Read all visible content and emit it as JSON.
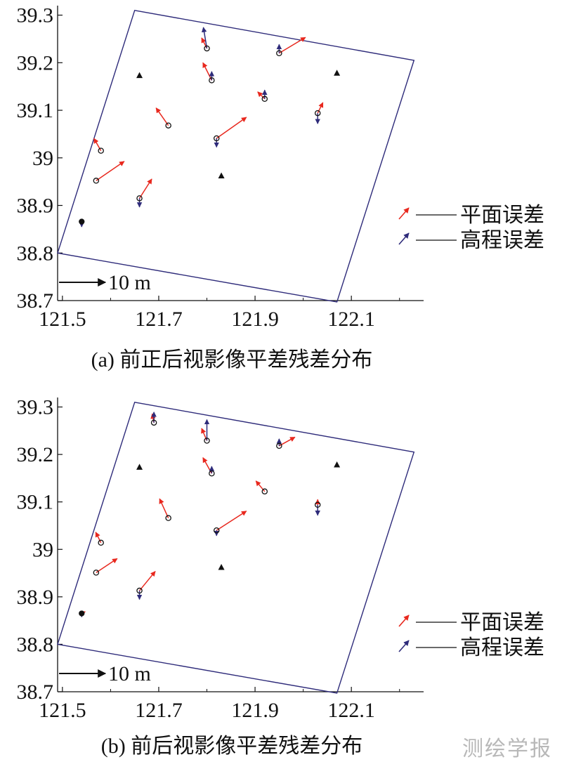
{
  "watermark": "测绘学报",
  "legend": {
    "planar": "平面误差",
    "height": "高程误差"
  },
  "colors": {
    "planar": "#e8281e",
    "height": "#2e2b7a",
    "frame": "#2e2b7a",
    "axis": "#111111"
  },
  "chart_data": [
    {
      "type": "scatter",
      "caption": "(a) 前正后视影像平差残差分布",
      "xlim": [
        121.49,
        122.25
      ],
      "ylim": [
        38.7,
        39.32
      ],
      "xticks": [
        "121.5",
        "121.7",
        "121.9",
        "122.1"
      ],
      "xtick_values": [
        121.5,
        121.7,
        121.9,
        122.1
      ],
      "yticks": [
        "39.3",
        "39.2",
        "39.1",
        "39",
        "38.9",
        "38.8",
        "38.7"
      ],
      "ytick_values": [
        39.3,
        39.2,
        39.1,
        39.0,
        38.9,
        38.8,
        38.7
      ],
      "scale_label": "10 m",
      "boundary": [
        [
          121.65,
          39.31
        ],
        [
          122.23,
          39.205
        ],
        [
          122.07,
          38.697
        ],
        [
          121.49,
          38.8
        ]
      ],
      "control_points": [
        [
          121.66,
          39.173
        ],
        [
          122.07,
          39.178
        ],
        [
          121.83,
          38.962
        ]
      ],
      "check_points": [
        [
          121.8,
          39.23
        ],
        [
          121.95,
          39.22
        ],
        [
          121.81,
          39.163
        ],
        [
          121.92,
          39.124
        ],
        [
          122.03,
          39.094
        ],
        [
          121.72,
          39.068
        ],
        [
          121.82,
          39.041
        ],
        [
          121.58,
          39.015
        ],
        [
          121.57,
          38.952
        ],
        [
          121.66,
          38.915
        ],
        [
          121.54,
          38.866
        ]
      ],
      "planar_error": [
        [
          -0.3,
          0.6
        ],
        [
          1.5,
          0.9
        ],
        [
          -0.5,
          1.0
        ],
        [
          -0.4,
          0.4
        ],
        [
          0.3,
          0.6
        ],
        [
          -0.7,
          1.0
        ],
        [
          1.7,
          1.2
        ],
        [
          -0.4,
          0.7
        ],
        [
          1.6,
          1.1
        ],
        [
          0.7,
          1.1
        ],
        [
          0,
          0
        ]
      ],
      "height_error": [
        [
          -0.2,
          1.2
        ],
        [
          0,
          0.5
        ],
        [
          0,
          0.5
        ],
        [
          0,
          0.5
        ],
        [
          0,
          -0.6
        ],
        [
          0,
          0
        ],
        [
          0,
          -0.5
        ],
        [
          0,
          0
        ],
        [
          0,
          0
        ],
        [
          0,
          -0.5
        ],
        [
          0,
          -0.3
        ]
      ]
    },
    {
      "type": "scatter",
      "caption": "(b) 前后视影像平差残差分布",
      "xlim": [
        121.49,
        122.25
      ],
      "ylim": [
        38.7,
        39.32
      ],
      "xticks": [
        "121.5",
        "121.7",
        "121.9",
        "122.1"
      ],
      "xtick_values": [
        121.5,
        121.7,
        121.9,
        122.1
      ],
      "yticks": [
        "39.3",
        "39.2",
        "39.1",
        "39",
        "38.9",
        "38.8",
        "38.7"
      ],
      "ytick_values": [
        39.3,
        39.2,
        39.1,
        39.0,
        38.9,
        38.8,
        38.7
      ],
      "scale_label": "10 m",
      "boundary": [
        [
          121.65,
          39.31
        ],
        [
          122.23,
          39.205
        ],
        [
          122.07,
          38.697
        ],
        [
          121.49,
          38.8
        ]
      ],
      "control_points": [
        [
          121.66,
          39.173
        ],
        [
          122.07,
          39.178
        ],
        [
          121.83,
          38.962
        ]
      ],
      "check_points": [
        [
          121.69,
          39.267
        ],
        [
          121.8,
          39.229
        ],
        [
          121.95,
          39.218
        ],
        [
          121.81,
          39.16
        ],
        [
          121.92,
          39.122
        ],
        [
          122.03,
          39.094
        ],
        [
          121.72,
          39.066
        ],
        [
          121.82,
          39.04
        ],
        [
          121.58,
          39.014
        ],
        [
          121.57,
          38.951
        ],
        [
          121.66,
          38.913
        ],
        [
          121.54,
          38.865
        ]
      ],
      "planar_error": [
        [
          -0.1,
          0.5
        ],
        [
          -0.3,
          0.7
        ],
        [
          0.9,
          0.5
        ],
        [
          -0.5,
          0.9
        ],
        [
          -0.5,
          0.6
        ],
        [
          0,
          0.3
        ],
        [
          -0.5,
          1.1
        ],
        [
          1.7,
          1.1
        ],
        [
          -0.3,
          0.6
        ],
        [
          1.2,
          0.8
        ],
        [
          0.9,
          1.1
        ],
        [
          0.2,
          0.1
        ]
      ],
      "height_error": [
        [
          0,
          0.6
        ],
        [
          0,
          1.2
        ],
        [
          0,
          0.4
        ],
        [
          0,
          0.4
        ],
        [
          0,
          0
        ],
        [
          0,
          -0.6
        ],
        [
          0,
          0
        ],
        [
          0,
          -0.3
        ],
        [
          0,
          0
        ],
        [
          0,
          0
        ],
        [
          0,
          -0.5
        ],
        [
          0,
          -0.2
        ]
      ]
    }
  ]
}
